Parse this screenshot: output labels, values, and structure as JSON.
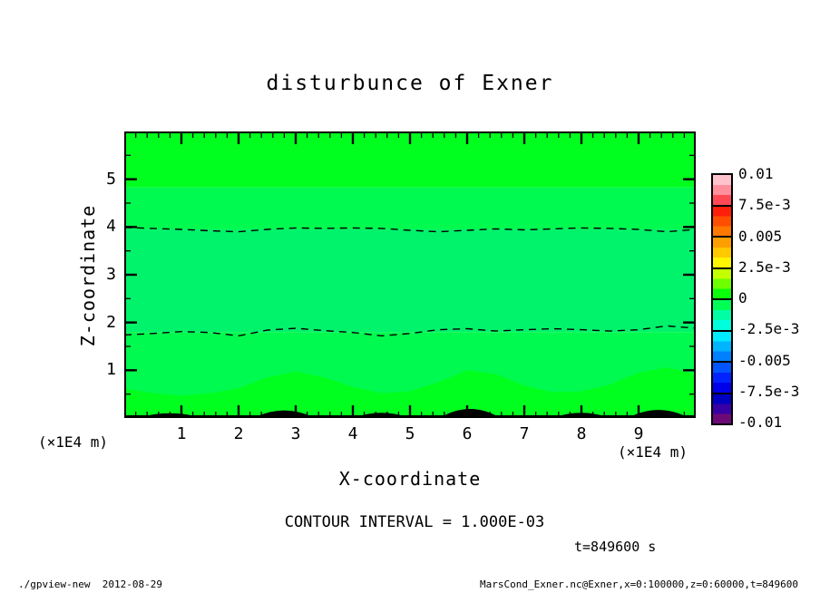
{
  "page": {
    "background": "#ffffff"
  },
  "chart_data": {
    "type": "heatmap",
    "title": "disturbunce of Exner",
    "xlabel": "X-coordinate",
    "ylabel": "Z-coordinate",
    "x_unit_label": "(×1E4 m)",
    "y_unit_label": "(×1E4 m)",
    "xlim": [
      0,
      10
    ],
    "ylim": [
      0,
      6
    ],
    "xticks": [
      1,
      2,
      3,
      4,
      5,
      6,
      7,
      8,
      9
    ],
    "yticks": [
      1,
      2,
      3,
      4,
      5
    ],
    "x_minor_step": 0.2,
    "y_minor_step": 0.5,
    "grid": false,
    "contour_interval_label": "CONTOUR INTERVAL = 1.000E-03",
    "time_label": "t=849600 s",
    "field_range_note": "values near 0; shaded bands between contour levels",
    "shading_bands": [
      {
        "name": "upper-bright-green",
        "z_top": 6.0,
        "z_bottom": 4.83,
        "color": "#00ff1e"
      },
      {
        "name": "upper-spring-green",
        "z_top": 4.83,
        "z_bottom": 3.95,
        "color": "#00fa4f"
      },
      {
        "name": "middle-sea-green",
        "z_top": 3.95,
        "z_bottom": 1.8,
        "color": "#00f36b"
      },
      {
        "name": "lower-spring-green",
        "z_top": 1.8,
        "z_bottom": 0.0,
        "color": "#00fa4f"
      },
      {
        "name": "bottom-bright-green",
        "wavy": true,
        "z_bottom": 0.0,
        "color": "#00ff1e",
        "top_boundary_points": [
          [
            0,
            0.62
          ],
          [
            0.5,
            0.52
          ],
          [
            1,
            0.47
          ],
          [
            1.5,
            0.52
          ],
          [
            2,
            0.62
          ],
          [
            2.5,
            0.85
          ],
          [
            3,
            0.97
          ],
          [
            3.5,
            0.85
          ],
          [
            4,
            0.65
          ],
          [
            4.5,
            0.52
          ],
          [
            5,
            0.56
          ],
          [
            5.5,
            0.75
          ],
          [
            6,
            1.0
          ],
          [
            6.5,
            0.92
          ],
          [
            7,
            0.68
          ],
          [
            7.5,
            0.54
          ],
          [
            8,
            0.56
          ],
          [
            8.5,
            0.7
          ],
          [
            9,
            0.95
          ],
          [
            9.5,
            1.06
          ],
          [
            10,
            0.92
          ]
        ]
      }
    ],
    "dashed_contours": [
      {
        "level_note": "negative contour ~ -1e-3",
        "points": [
          [
            0,
            3.99
          ],
          [
            0.5,
            3.97
          ],
          [
            1,
            3.95
          ],
          [
            1.5,
            3.92
          ],
          [
            2,
            3.9
          ],
          [
            2.5,
            3.95
          ],
          [
            3,
            3.98
          ],
          [
            3.5,
            3.97
          ],
          [
            4,
            3.98
          ],
          [
            4.5,
            3.97
          ],
          [
            5,
            3.93
          ],
          [
            5.5,
            3.9
          ],
          [
            6,
            3.93
          ],
          [
            6.5,
            3.96
          ],
          [
            7,
            3.94
          ],
          [
            7.5,
            3.96
          ],
          [
            8,
            3.98
          ],
          [
            8.5,
            3.97
          ],
          [
            9,
            3.95
          ],
          [
            9.5,
            3.9
          ],
          [
            10,
            3.95
          ]
        ]
      },
      {
        "level_note": "negative contour ~ -1e-3",
        "points": [
          [
            0,
            1.74
          ],
          [
            0.5,
            1.77
          ],
          [
            1,
            1.81
          ],
          [
            1.5,
            1.79
          ],
          [
            2,
            1.72
          ],
          [
            2.5,
            1.84
          ],
          [
            3,
            1.88
          ],
          [
            3.5,
            1.83
          ],
          [
            4,
            1.79
          ],
          [
            4.5,
            1.72
          ],
          [
            5,
            1.77
          ],
          [
            5.5,
            1.85
          ],
          [
            6,
            1.87
          ],
          [
            6.5,
            1.82
          ],
          [
            7,
            1.85
          ],
          [
            7.5,
            1.87
          ],
          [
            8,
            1.85
          ],
          [
            8.5,
            1.82
          ],
          [
            9,
            1.85
          ],
          [
            9.5,
            1.93
          ],
          [
            10,
            1.88
          ]
        ]
      }
    ],
    "bottom_solid_contours": [
      {
        "x_center": 0.8,
        "half_width": 0.5,
        "height_z": 0.08
      },
      {
        "x_center": 2.8,
        "half_width": 0.5,
        "height_z": 0.14
      },
      {
        "x_center": 4.5,
        "half_width": 0.45,
        "height_z": 0.09
      },
      {
        "x_center": 6.05,
        "half_width": 0.5,
        "height_z": 0.17
      },
      {
        "x_center": 8.0,
        "half_width": 0.45,
        "height_z": 0.09
      },
      {
        "x_center": 9.35,
        "half_width": 0.5,
        "height_z": 0.15
      }
    ],
    "colorbar": {
      "tick_labels": [
        "0.01",
        "7.5e-3",
        "0.005",
        "2.5e-3",
        "0",
        "-2.5e-3",
        "-0.005",
        "-7.5e-3",
        "-0.01"
      ],
      "segments": [
        {
          "colors": [
            "#ffc3cd",
            "#ff8f9b",
            "#ff4a55"
          ]
        },
        {
          "colors": [
            "#ff1e0a",
            "#ff4e00",
            "#ff7800"
          ]
        },
        {
          "colors": [
            "#ff9e00",
            "#ffc800",
            "#fff500"
          ]
        },
        {
          "colors": [
            "#c3ff00",
            "#6eff00",
            "#0aff0a"
          ]
        },
        {
          "colors": [
            "#00ff55",
            "#00ffa5",
            "#00ffdc"
          ]
        },
        {
          "colors": [
            "#00ebff",
            "#00b4ff",
            "#0080ff"
          ]
        },
        {
          "colors": [
            "#0055ff",
            "#0023ff",
            "#0000eb"
          ]
        },
        {
          "colors": [
            "#0000c3",
            "#3700a5",
            "#6e0a78"
          ]
        }
      ]
    }
  },
  "footer": {
    "left": "./gpview-new  2012-08-29",
    "right": "MarsCond_Exner.nc@Exner,x=0:100000,z=0:60000,t=849600"
  }
}
